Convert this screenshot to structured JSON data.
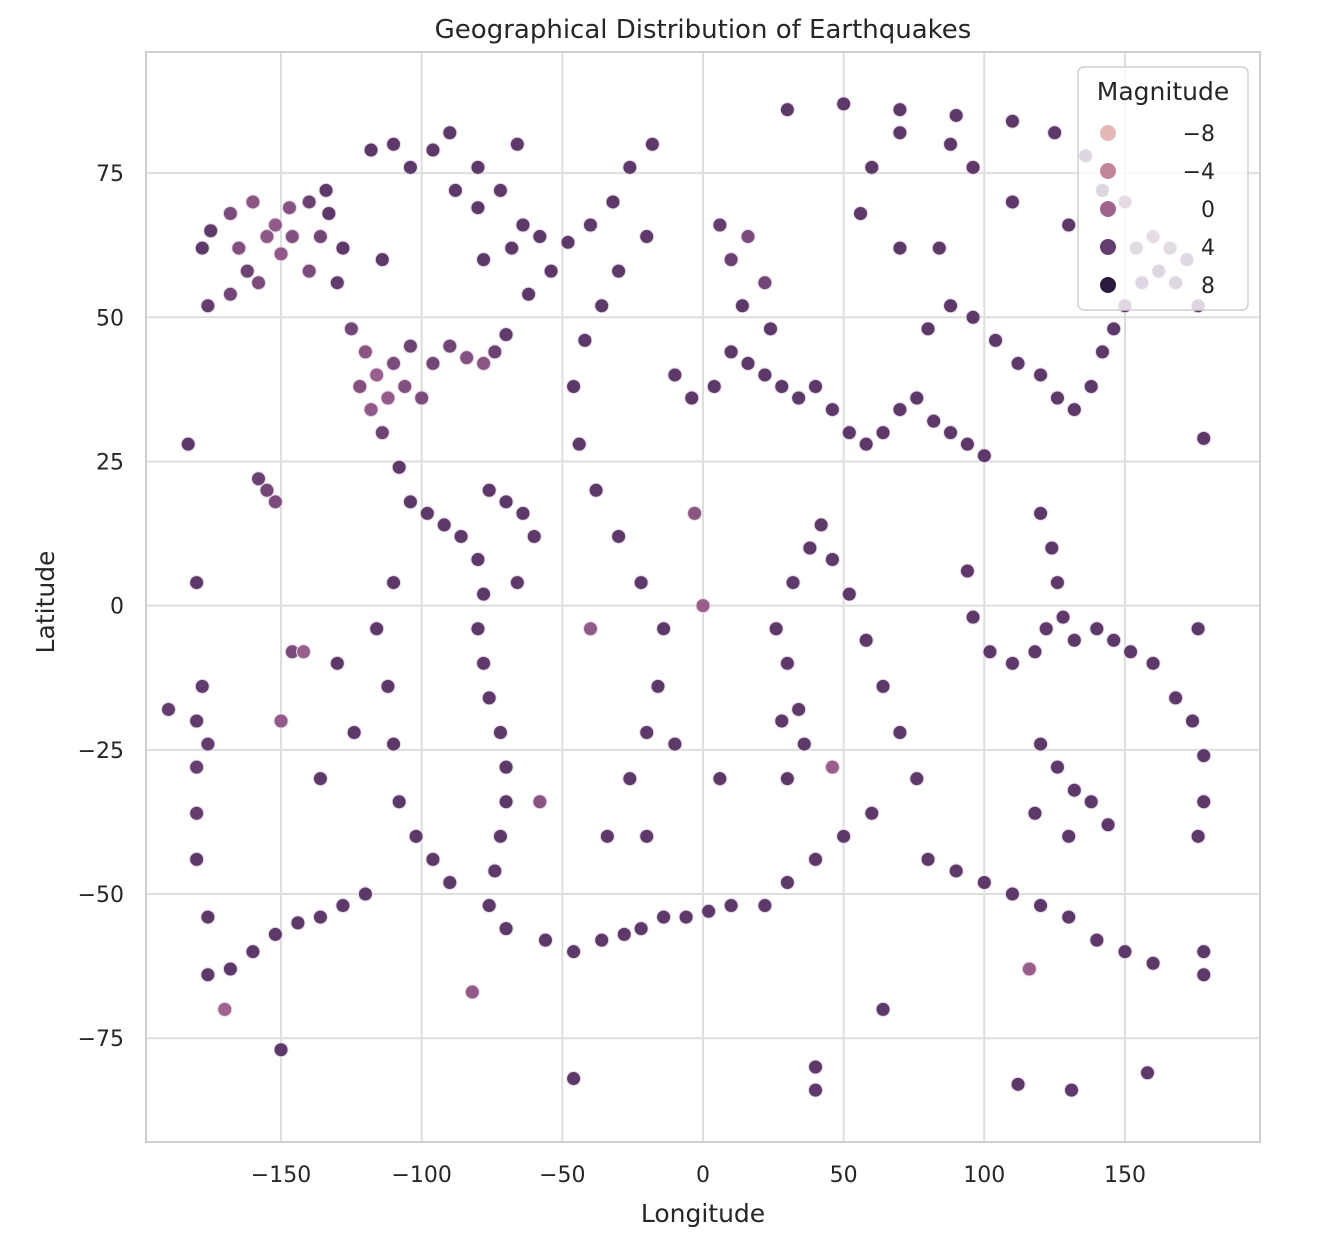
{
  "chart_data": {
    "type": "scatter",
    "title": "Geographical Distribution of Earthquakes",
    "xlabel": "Longitude",
    "ylabel": "Latitude",
    "xlim": [
      -198,
      198
    ],
    "ylim": [
      -93,
      96
    ],
    "xticks": [
      -150,
      -100,
      -50,
      0,
      50,
      100,
      150
    ],
    "xtick_labels": [
      "−150",
      "−100",
      "−50",
      "0",
      "50",
      "100",
      "150"
    ],
    "yticks": [
      75,
      50,
      25,
      0,
      -25,
      -50,
      -75
    ],
    "ytick_labels": [
      "75",
      "50",
      "25",
      "0",
      "−25",
      "−50",
      "−75"
    ],
    "grid": true,
    "hue": "Magnitude",
    "legend": {
      "title": "Magnitude",
      "placement": "top-right",
      "entries": [
        {
          "label": "−8",
          "value": -8,
          "color": "#e3b8b7"
        },
        {
          "label": "−4",
          "value": -4,
          "color": "#c2849a"
        },
        {
          "label": "0",
          "value": 0,
          "color": "#a06390"
        },
        {
          "label": "4",
          "value": 4,
          "color": "#633d6e"
        },
        {
          "label": "8",
          "value": 8,
          "color": "#2a1b3e"
        }
      ]
    },
    "marker_color": "#5e3a6c",
    "marker_edge": "#ead8ea",
    "points": [
      [
        -175,
        65,
        4.4
      ],
      [
        -168,
        68,
        2.5
      ],
      [
        -160,
        70,
        1.5
      ],
      [
        -152,
        66,
        1.0
      ],
      [
        -146,
        64,
        2.0
      ],
      [
        -140,
        70,
        3.5
      ],
      [
        -133,
        68,
        4.5
      ],
      [
        -162,
        58,
        3.5
      ],
      [
        -176,
        52,
        4.0
      ],
      [
        -168,
        54,
        3.0
      ],
      [
        -158,
        56,
        2.5
      ],
      [
        -150,
        61,
        1.0
      ],
      [
        -140,
        58,
        2.5
      ],
      [
        -130,
        56,
        4.2
      ],
      [
        -178,
        62,
        4.5
      ],
      [
        -165,
        62,
        2.0
      ],
      [
        -155,
        64,
        1.2
      ],
      [
        -147,
        69,
        1.8
      ],
      [
        -136,
        64,
        3.0
      ],
      [
        -125,
        48,
        3.0
      ],
      [
        -120,
        44,
        1.5
      ],
      [
        -116,
        40,
        0.5
      ],
      [
        -112,
        36,
        1.0
      ],
      [
        -106,
        38,
        2.0
      ],
      [
        -100,
        36,
        2.5
      ],
      [
        -96,
        42,
        3.0
      ],
      [
        -90,
        45,
        3.2
      ],
      [
        -84,
        43,
        2.0
      ],
      [
        -78,
        42,
        1.5
      ],
      [
        -74,
        44,
        3.5
      ],
      [
        -70,
        47,
        4.2
      ],
      [
        -118,
        34,
        1.0
      ],
      [
        -110,
        42,
        2.5
      ],
      [
        -104,
        45,
        3.4
      ],
      [
        -122,
        38,
        2.0
      ],
      [
        -114,
        30,
        3.5
      ],
      [
        -118,
        79,
        4.5
      ],
      [
        -110,
        80,
        4.5
      ],
      [
        -104,
        76,
        4.5
      ],
      [
        -96,
        79,
        4.5
      ],
      [
        -88,
        72,
        4.5
      ],
      [
        -80,
        69,
        4.5
      ],
      [
        -72,
        72,
        4.5
      ],
      [
        -64,
        66,
        4.5
      ],
      [
        -78,
        60,
        4.5
      ],
      [
        -68,
        62,
        4.5
      ],
      [
        -58,
        64,
        4.5
      ],
      [
        -54,
        58,
        4.5
      ],
      [
        -62,
        54,
        4.5
      ],
      [
        -48,
        63,
        4.5
      ],
      [
        -40,
        66,
        4.5
      ],
      [
        -32,
        70,
        4.5
      ],
      [
        -26,
        76,
        4.5
      ],
      [
        -18,
        80,
        4.5
      ],
      [
        -108,
        24,
        4.5
      ],
      [
        -104,
        18,
        4.5
      ],
      [
        -98,
        16,
        4.5
      ],
      [
        -92,
        14,
        4.5
      ],
      [
        -86,
        12,
        4.5
      ],
      [
        -80,
        8,
        4.5
      ],
      [
        -76,
        20,
        4.5
      ],
      [
        -70,
        18,
        4.5
      ],
      [
        -64,
        16,
        4.5
      ],
      [
        -60,
        12,
        4.5
      ],
      [
        -66,
        4,
        4.5
      ],
      [
        -78,
        2,
        4.5
      ],
      [
        -80,
        -4,
        4.5
      ],
      [
        -78,
        -10,
        4.5
      ],
      [
        -76,
        -16,
        4.5
      ],
      [
        -72,
        -22,
        4.5
      ],
      [
        -70,
        -28,
        4.5
      ],
      [
        -70,
        -34,
        4.5
      ],
      [
        -72,
        -40,
        4.5
      ],
      [
        -74,
        -46,
        4.5
      ],
      [
        -76,
        -52,
        4.5
      ],
      [
        -70,
        -56,
        4.5
      ],
      [
        -112,
        -14,
        4.5
      ],
      [
        -110,
        -24,
        4.5
      ],
      [
        -108,
        -34,
        4.5
      ],
      [
        -102,
        -40,
        4.5
      ],
      [
        -96,
        -44,
        4.5
      ],
      [
        -90,
        -48,
        4.5
      ],
      [
        -116,
        -4,
        4.5
      ],
      [
        -110,
        4,
        4.5
      ],
      [
        -56,
        -58,
        4.5
      ],
      [
        -46,
        -60,
        4.5
      ],
      [
        -36,
        -58,
        4.5
      ],
      [
        -28,
        -57,
        4.5
      ],
      [
        -22,
        -56,
        4.5
      ],
      [
        -14,
        -54,
        4.5
      ],
      [
        -6,
        -54,
        4.5
      ],
      [
        2,
        -53,
        4.5
      ],
      [
        10,
        -52,
        4.5
      ],
      [
        -34,
        -40,
        4.5
      ],
      [
        -26,
        -30,
        4.5
      ],
      [
        -20,
        -22,
        4.5
      ],
      [
        -16,
        -14,
        4.5
      ],
      [
        -14,
        -4,
        4.5
      ],
      [
        -22,
        4,
        4.5
      ],
      [
        -30,
        12,
        4.5
      ],
      [
        -38,
        20,
        4.5
      ],
      [
        -44,
        28,
        4.5
      ],
      [
        -46,
        38,
        4.5
      ],
      [
        -42,
        46,
        4.5
      ],
      [
        -36,
        52,
        4.5
      ],
      [
        -30,
        58,
        4.5
      ],
      [
        -20,
        64,
        4.5
      ],
      [
        -190,
        -18,
        4.0
      ],
      [
        -180,
        -20,
        4.2
      ],
      [
        -180,
        -28,
        3.8
      ],
      [
        -180,
        -36,
        4.0
      ],
      [
        -178,
        -14,
        4.2
      ],
      [
        -176,
        -24,
        4.0
      ],
      [
        -10,
        40,
        4.5
      ],
      [
        -4,
        36,
        4.5
      ],
      [
        4,
        38,
        4.5
      ],
      [
        10,
        44,
        4.5
      ],
      [
        16,
        42,
        4.5
      ],
      [
        22,
        40,
        4.5
      ],
      [
        28,
        38,
        4.5
      ],
      [
        34,
        36,
        4.5
      ],
      [
        40,
        38,
        4.5
      ],
      [
        46,
        34,
        4.5
      ],
      [
        52,
        30,
        4.5
      ],
      [
        58,
        28,
        4.5
      ],
      [
        64,
        30,
        4.5
      ],
      [
        70,
        34,
        4.5
      ],
      [
        76,
        36,
        4.5
      ],
      [
        82,
        32,
        4.5
      ],
      [
        88,
        30,
        4.5
      ],
      [
        94,
        28,
        4.5
      ],
      [
        100,
        26,
        4.5
      ],
      [
        10,
        60,
        3.5
      ],
      [
        16,
        64,
        2.5
      ],
      [
        22,
        56,
        3.0
      ],
      [
        6,
        66,
        4.0
      ],
      [
        14,
        52,
        4.5
      ],
      [
        24,
        48,
        4.5
      ],
      [
        80,
        48,
        4.5
      ],
      [
        88,
        52,
        4.5
      ],
      [
        96,
        50,
        4.5
      ],
      [
        104,
        46,
        4.5
      ],
      [
        112,
        42,
        4.5
      ],
      [
        120,
        40,
        4.5
      ],
      [
        126,
        36,
        4.5
      ],
      [
        132,
        34,
        4.5
      ],
      [
        138,
        38,
        4.5
      ],
      [
        142,
        44,
        4.5
      ],
      [
        146,
        48,
        4.5
      ],
      [
        150,
        52,
        4.5
      ],
      [
        156,
        56,
        4.5
      ],
      [
        162,
        58,
        4.5
      ],
      [
        168,
        56,
        4.5
      ],
      [
        176,
        52,
        4.5
      ],
      [
        30,
        86,
        4.5
      ],
      [
        50,
        87,
        4.5
      ],
      [
        70,
        86,
        4.5
      ],
      [
        90,
        85,
        4.5
      ],
      [
        110,
        84,
        4.5
      ],
      [
        125,
        82,
        4.5
      ],
      [
        136,
        78,
        4.5
      ],
      [
        142,
        72,
        4.5
      ],
      [
        154,
        62,
        3.0
      ],
      [
        160,
        64,
        2.0
      ],
      [
        166,
        62,
        3.0
      ],
      [
        172,
        60,
        4.0
      ],
      [
        150,
        70,
        2.5
      ],
      [
        120,
        16,
        4.5
      ],
      [
        124,
        10,
        4.5
      ],
      [
        126,
        4,
        4.5
      ],
      [
        122,
        -4,
        4.5
      ],
      [
        118,
        -8,
        4.5
      ],
      [
        110,
        -10,
        4.5
      ],
      [
        102,
        -8,
        4.5
      ],
      [
        96,
        -2,
        4.5
      ],
      [
        94,
        6,
        4.5
      ],
      [
        128,
        -2,
        4.5
      ],
      [
        132,
        -6,
        4.5
      ],
      [
        140,
        -4,
        4.5
      ],
      [
        146,
        -6,
        4.5
      ],
      [
        152,
        -8,
        4.5
      ],
      [
        160,
        -10,
        4.5
      ],
      [
        168,
        -16,
        4.5
      ],
      [
        174,
        -20,
        4.5
      ],
      [
        178,
        -26,
        4.5
      ],
      [
        178,
        -34,
        4.5
      ],
      [
        176,
        -40,
        4.5
      ],
      [
        120,
        -24,
        4.5
      ],
      [
        126,
        -28,
        4.5
      ],
      [
        132,
        -32,
        4.5
      ],
      [
        138,
        -34,
        4.5
      ],
      [
        144,
        -38,
        4.5
      ],
      [
        130,
        -40,
        4.5
      ],
      [
        118,
        -36,
        4.5
      ],
      [
        30,
        -10,
        4.5
      ],
      [
        34,
        -18,
        4.5
      ],
      [
        36,
        -24,
        4.5
      ],
      [
        30,
        -30,
        4.5
      ],
      [
        28,
        -20,
        4.5
      ],
      [
        26,
        -4,
        4.5
      ],
      [
        32,
        4,
        4.5
      ],
      [
        38,
        10,
        4.5
      ],
      [
        42,
        14,
        4.5
      ],
      [
        46,
        8,
        4.5
      ],
      [
        52,
        2,
        4.5
      ],
      [
        58,
        -6,
        4.5
      ],
      [
        64,
        -14,
        4.5
      ],
      [
        70,
        -22,
        4.5
      ],
      [
        76,
        -30,
        4.5
      ],
      [
        60,
        -36,
        4.5
      ],
      [
        50,
        -40,
        4.5
      ],
      [
        40,
        -44,
        4.5
      ],
      [
        30,
        -48,
        4.5
      ],
      [
        22,
        -52,
        4.5
      ],
      [
        80,
        -44,
        4.5
      ],
      [
        90,
        -46,
        4.5
      ],
      [
        100,
        -48,
        4.5
      ],
      [
        110,
        -50,
        4.5
      ],
      [
        120,
        -52,
        4.5
      ],
      [
        130,
        -54,
        4.5
      ],
      [
        140,
        -58,
        4.5
      ],
      [
        150,
        -60,
        4.5
      ],
      [
        160,
        -62,
        4.5
      ],
      [
        -176,
        -64,
        4.5
      ],
      [
        -168,
        -63,
        4.5
      ],
      [
        -160,
        -60,
        4.5
      ],
      [
        -152,
        -57,
        4.5
      ],
      [
        -144,
        -55,
        4.5
      ],
      [
        -136,
        -54,
        4.5
      ],
      [
        -128,
        -52,
        4.5
      ],
      [
        -120,
        -50,
        4.5
      ],
      [
        -170,
        -70,
        0.0
      ],
      [
        -150,
        -77,
        4.5
      ],
      [
        -82,
        -67,
        1.0
      ],
      [
        -46,
        -82,
        4.5
      ],
      [
        40,
        -80,
        4.5
      ],
      [
        40,
        -84,
        4.5
      ],
      [
        112,
        -83,
        4.5
      ],
      [
        131,
        -84,
        4.5
      ],
      [
        158,
        -81,
        4.5
      ],
      [
        116,
        -63,
        0.5
      ],
      [
        64,
        -70,
        4.5
      ],
      [
        -183,
        28,
        4.5
      ],
      [
        -180,
        4,
        4.5
      ],
      [
        -176,
        -54,
        4.5
      ],
      [
        -180,
        -44,
        4.5
      ],
      [
        178,
        29,
        4.5
      ],
      [
        178,
        -60,
        4.5
      ],
      [
        178,
        -64,
        4.5
      ],
      [
        176,
        -4,
        4.5
      ],
      [
        -155,
        20,
        3.0
      ],
      [
        -152,
        18,
        2.5
      ],
      [
        -158,
        22,
        3.5
      ],
      [
        -150,
        -20,
        1.0
      ],
      [
        -146,
        -8,
        2.5
      ],
      [
        -142,
        -8,
        0.5
      ],
      [
        -130,
        -10,
        4.5
      ],
      [
        -124,
        -22,
        4.5
      ],
      [
        -136,
        -30,
        4.5
      ],
      [
        -3,
        16,
        1.5
      ],
      [
        0,
        0,
        0.5
      ],
      [
        -40,
        -4,
        1.0
      ],
      [
        46,
        -28,
        0.5
      ],
      [
        -58,
        -34,
        1.5
      ],
      [
        -10,
        -24,
        4.5
      ],
      [
        -20,
        -40,
        4.5
      ],
      [
        6,
        -30,
        4.5
      ],
      [
        70,
        82,
        4.5
      ],
      [
        88,
        80,
        4.5
      ],
      [
        96,
        76,
        4.5
      ],
      [
        56,
        68,
        4.5
      ],
      [
        60,
        76,
        4.5
      ],
      [
        70,
        62,
        4.5
      ],
      [
        84,
        62,
        4.5
      ],
      [
        110,
        70,
        4.5
      ],
      [
        130,
        66,
        4.5
      ],
      [
        -80,
        76,
        4.5
      ],
      [
        -90,
        82,
        4.5
      ],
      [
        -66,
        80,
        4.5
      ],
      [
        -134,
        72,
        4.5
      ],
      [
        -128,
        62,
        4.5
      ],
      [
        -114,
        60,
        4.5
      ]
    ]
  }
}
